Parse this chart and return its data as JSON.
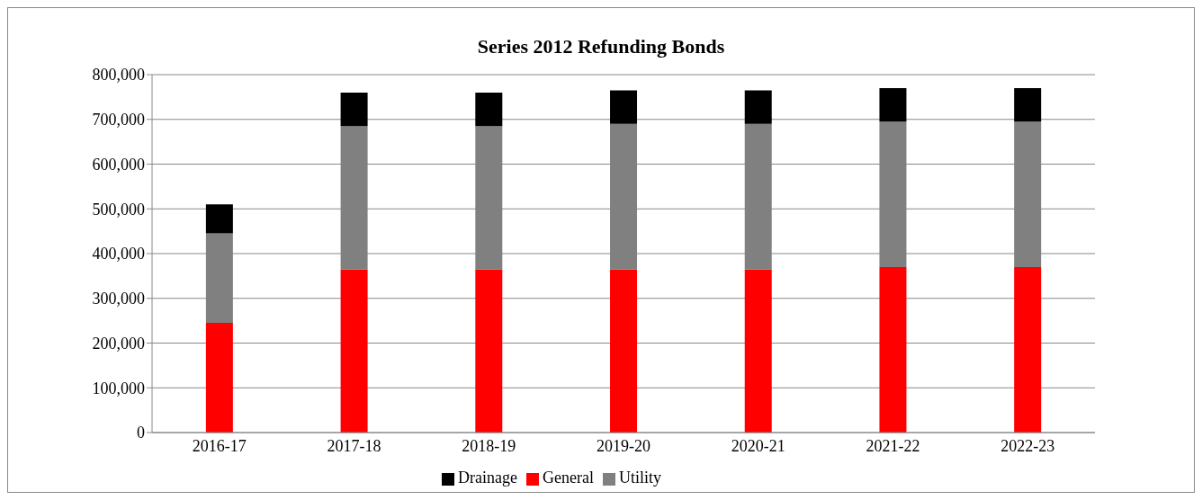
{
  "chart_data": {
    "type": "bar",
    "title": "Series 2012 Refunding Bonds",
    "stacked": true,
    "categories": [
      "2016-17",
      "2017-18",
      "2018-19",
      "2019-20",
      "2020-21",
      "2021-22",
      "2022-23"
    ],
    "series": [
      {
        "name": "General",
        "color": "#ff0000",
        "values": [
          245000,
          365000,
          365000,
          365000,
          365000,
          370000,
          370000
        ]
      },
      {
        "name": "Utility",
        "color": "#808080",
        "values": [
          200000,
          320000,
          320000,
          325000,
          325000,
          325000,
          325000
        ]
      },
      {
        "name": "Drainage",
        "color": "#000000",
        "values": [
          65000,
          75000,
          75000,
          75000,
          75000,
          75000,
          75000
        ]
      }
    ],
    "ylim": [
      0,
      800000
    ],
    "yticks": [
      {
        "value": 0,
        "label": "0"
      },
      {
        "value": 100000,
        "label": "100,000"
      },
      {
        "value": 200000,
        "label": "200,000"
      },
      {
        "value": 300000,
        "label": "300,000"
      },
      {
        "value": 400000,
        "label": "400,000"
      },
      {
        "value": 500000,
        "label": "500,000"
      },
      {
        "value": 600000,
        "label": "600,000"
      },
      {
        "value": 700000,
        "label": "700,000"
      },
      {
        "value": 800000,
        "label": "800,000"
      }
    ],
    "grid": "y",
    "legend": "bottom"
  }
}
